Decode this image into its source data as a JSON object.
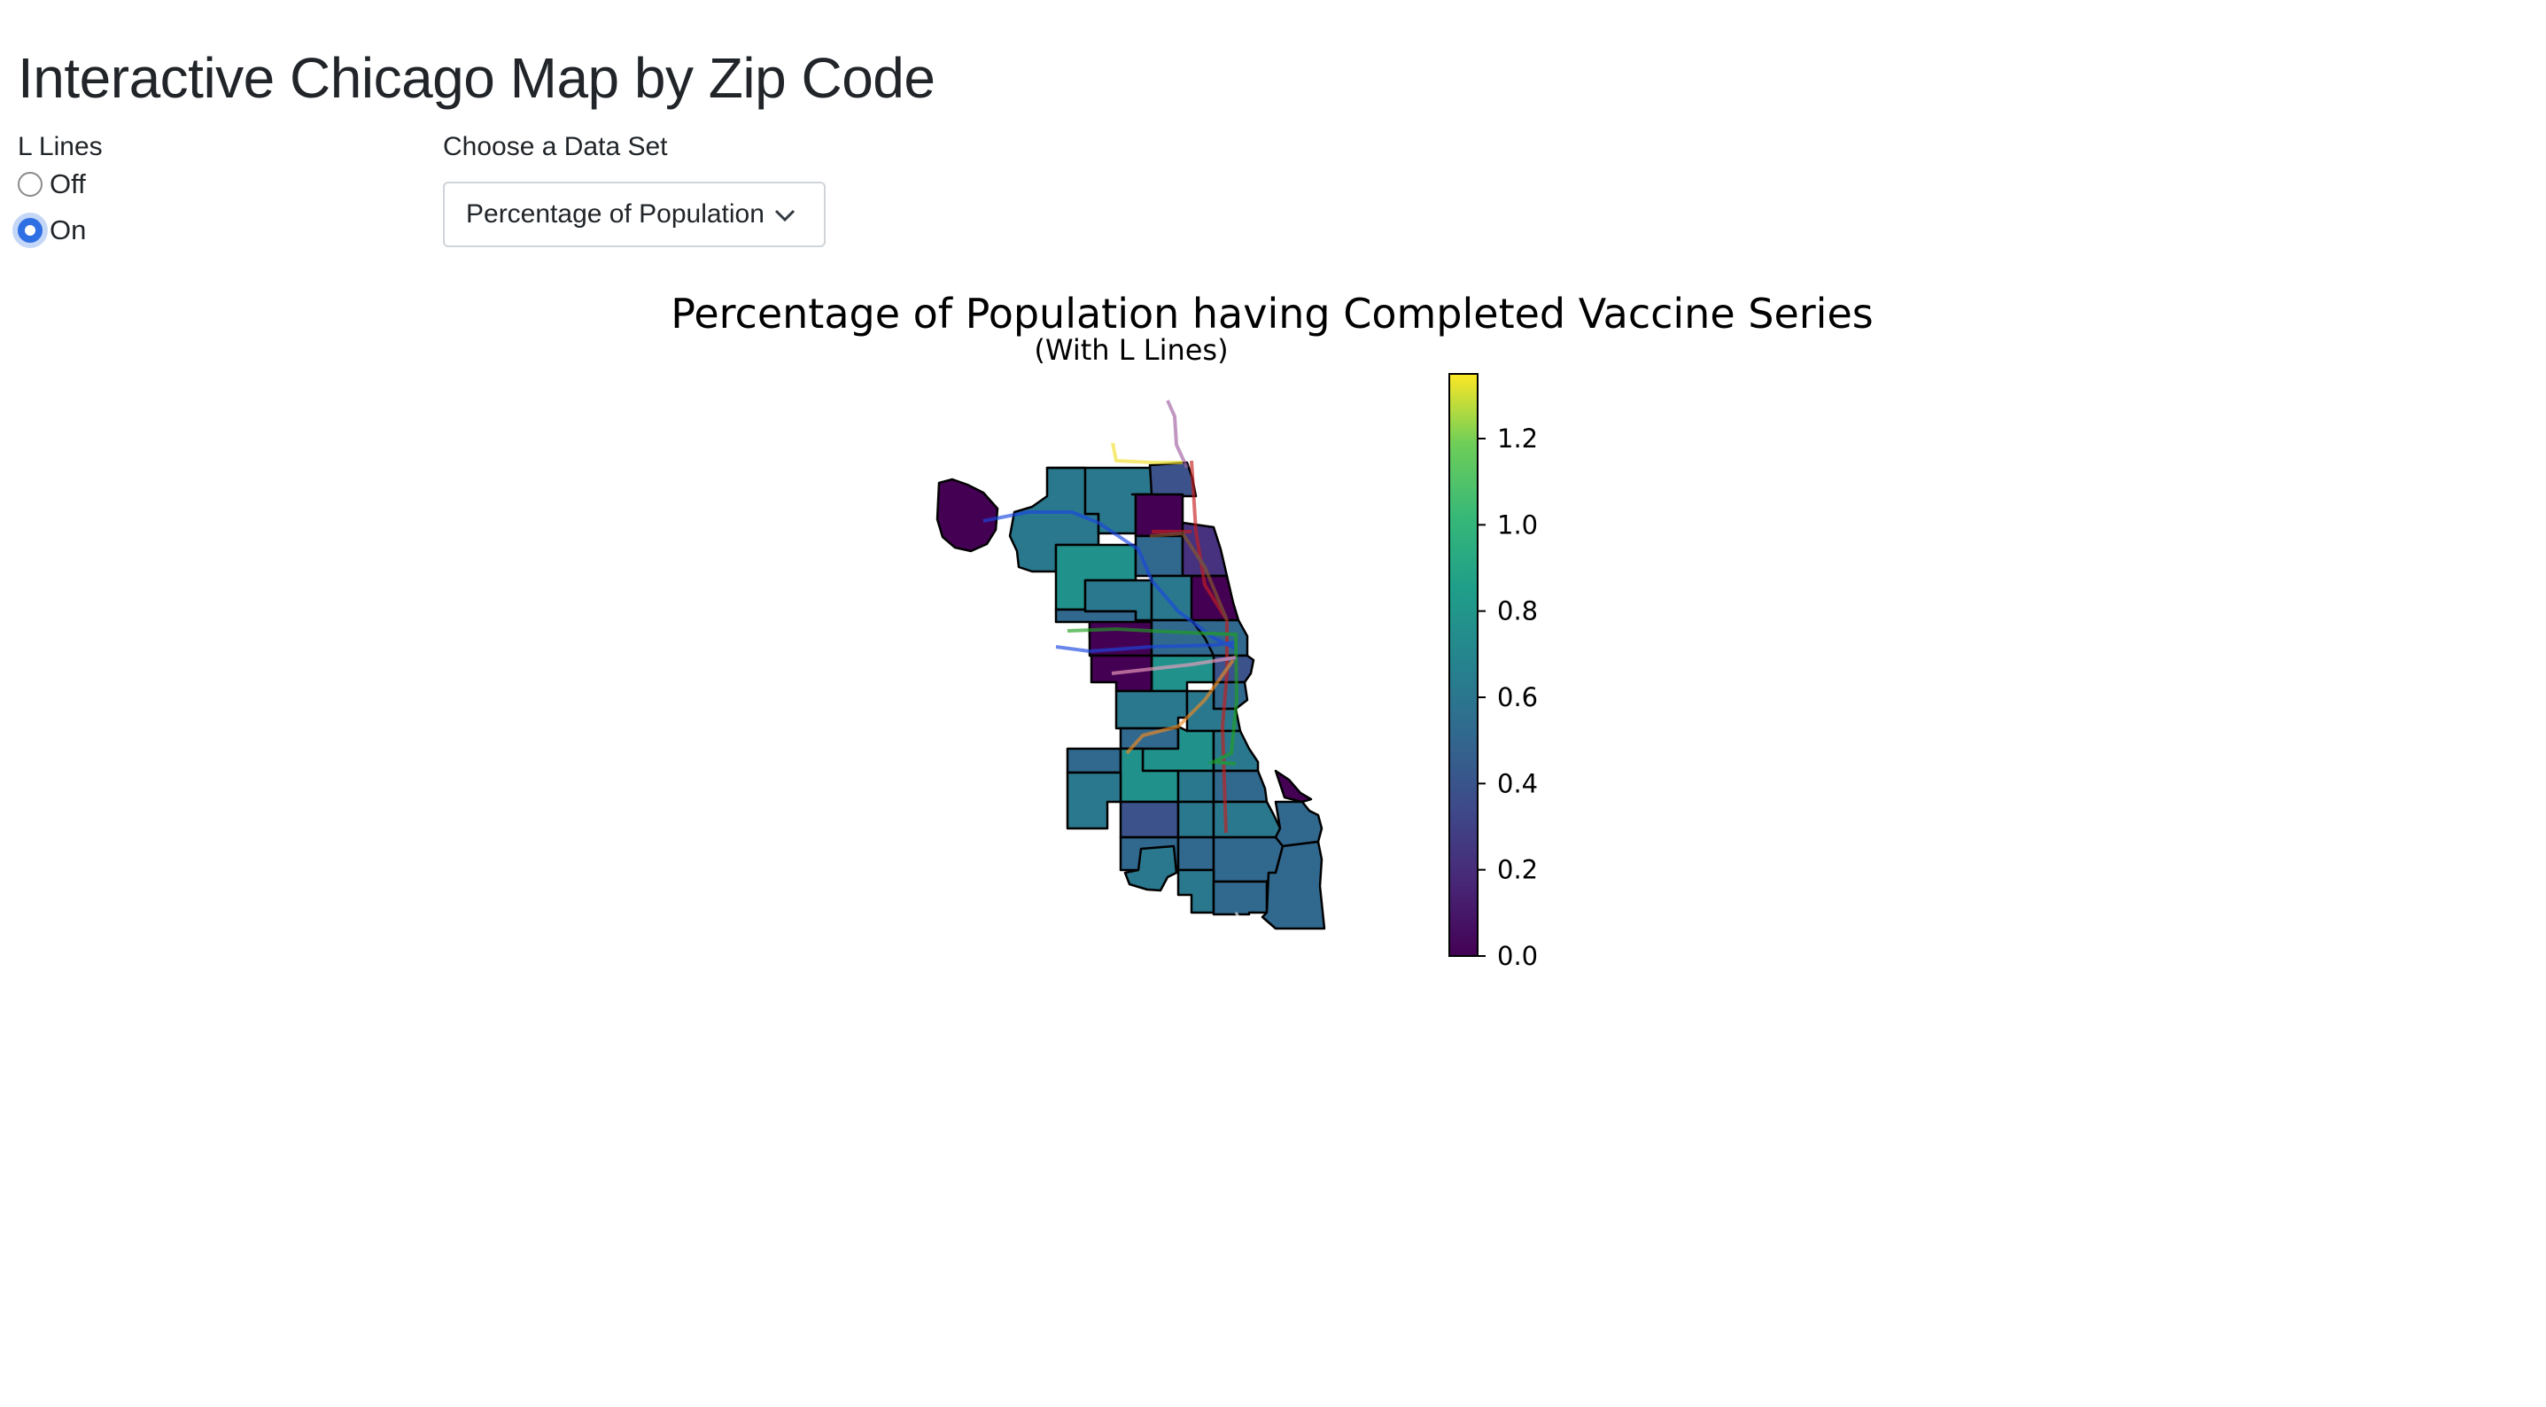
{
  "page": {
    "title": "Interactive Chicago Map by Zip Code"
  },
  "l_lines": {
    "label": "L Lines",
    "options": [
      {
        "label": "Off",
        "selected": false
      },
      {
        "label": "On",
        "selected": true
      }
    ]
  },
  "dataset": {
    "label": "Choose a Data Set",
    "selected": "Percentage of Population having Completed Vaccine Series"
  },
  "colors": {
    "accent": "#2f6fe4",
    "region_outline": "#000000"
  },
  "chart_data": {
    "type": "heatmap",
    "title": "Percentage of Population having Completed Vaccine Series",
    "subtitle": "(With L Lines)",
    "colormap": "viridis",
    "colorbar": {
      "vmin": 0.0,
      "vmax": 1.35,
      "ticks": [
        "0.0",
        "0.2",
        "0.4",
        "0.6",
        "0.8",
        "1.0",
        "1.2"
      ]
    },
    "axes_visible": false
  }
}
